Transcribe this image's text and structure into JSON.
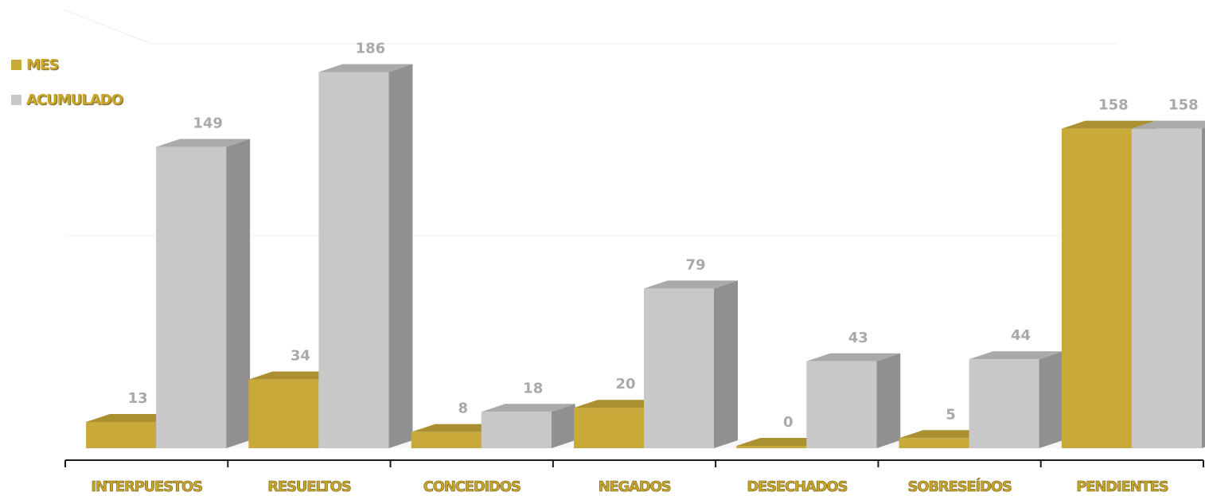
{
  "chart_data": {
    "type": "bar",
    "categories": [
      "INTERPUESTOS",
      "RESUELTOS",
      "CONCEDIDOS",
      "NEGADOS",
      "DESECHADOS",
      "SOBRESEÍDOS",
      "PENDIENTES"
    ],
    "series": [
      {
        "name": "MES",
        "values": [
          13,
          34,
          8,
          20,
          0,
          5,
          158
        ],
        "color": "#c9a93a"
      },
      {
        "name": "ACUMULADO",
        "values": [
          149,
          186,
          18,
          79,
          43,
          44,
          158
        ],
        "color": "#c8c8c8"
      }
    ],
    "ylim": [
      0,
      200
    ],
    "grid": true,
    "legend": "top-left",
    "style": "3d-column"
  }
}
